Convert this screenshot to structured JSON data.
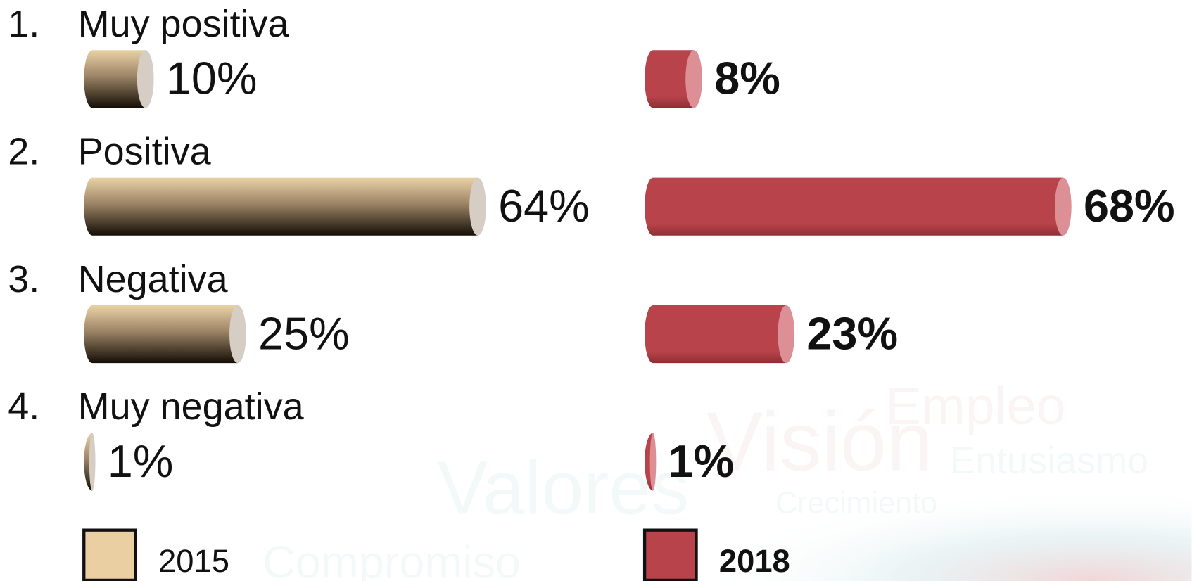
{
  "chart_data": {
    "type": "bar",
    "orientation": "horizontal",
    "numbers": [
      "1.",
      "2.",
      "3.",
      "4."
    ],
    "categories": [
      "Muy positiva",
      "Positiva",
      "Negativa",
      "Muy negativa"
    ],
    "series": [
      {
        "name": "2015",
        "color": "#e9cfa2",
        "values": [
          10,
          64,
          25,
          1
        ],
        "value_labels": [
          "10%",
          "64%",
          "25%",
          "1%"
        ]
      },
      {
        "name": "2018",
        "color": "#b8434a",
        "values": [
          8,
          68,
          23,
          1
        ],
        "value_labels": [
          "8%",
          "68%",
          "23%",
          "1%"
        ]
      }
    ],
    "xlim": [
      0,
      100
    ],
    "watermark": [
      "Valores",
      "Visión",
      "Empleo",
      "Entusiasmo",
      "Crecimiento",
      "Compromiso"
    ]
  }
}
